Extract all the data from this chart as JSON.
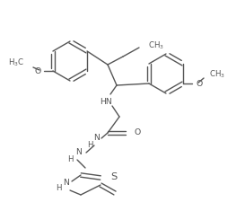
{
  "bg": "#ffffff",
  "lc": "#555555",
  "lw": 1.0,
  "fs": 6.2,
  "figsize": [
    2.73,
    2.25
  ],
  "dpi": 100,
  "xlim": [
    0,
    273
  ],
  "ylim": [
    0,
    225
  ]
}
